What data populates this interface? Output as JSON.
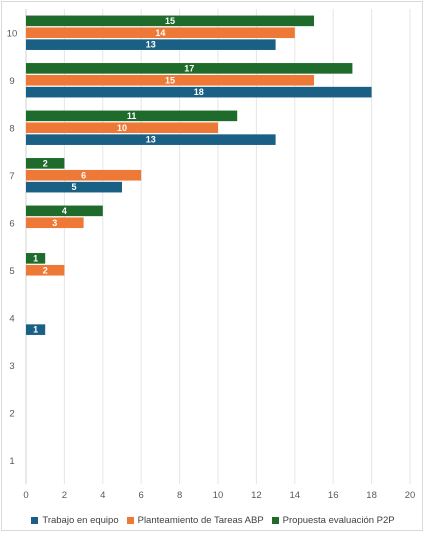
{
  "chart_data": {
    "type": "bar",
    "orientation": "horizontal",
    "categories": [
      "1",
      "2",
      "3",
      "4",
      "5",
      "6",
      "7",
      "8",
      "9",
      "10"
    ],
    "series": [
      {
        "name": "Trabajo en equipo",
        "color": "#1a5f84",
        "values": [
          null,
          null,
          null,
          1,
          null,
          null,
          5,
          13,
          18,
          13
        ]
      },
      {
        "name": "Planteamiento de Tareas ABP",
        "color": "#ee7836",
        "values": [
          null,
          null,
          null,
          null,
          2,
          3,
          6,
          10,
          15,
          14
        ]
      },
      {
        "name": "Propuesta evaluación P2P",
        "color": "#1e6b2b",
        "values": [
          null,
          null,
          null,
          null,
          1,
          4,
          2,
          11,
          17,
          15
        ]
      }
    ],
    "x_ticks": [
      "0",
      "2",
      "4",
      "6",
      "8",
      "10",
      "12",
      "14",
      "16",
      "18",
      "20"
    ],
    "xlim": [
      0,
      20
    ],
    "grid": true,
    "data_labels": true,
    "legend_position": "bottom"
  }
}
